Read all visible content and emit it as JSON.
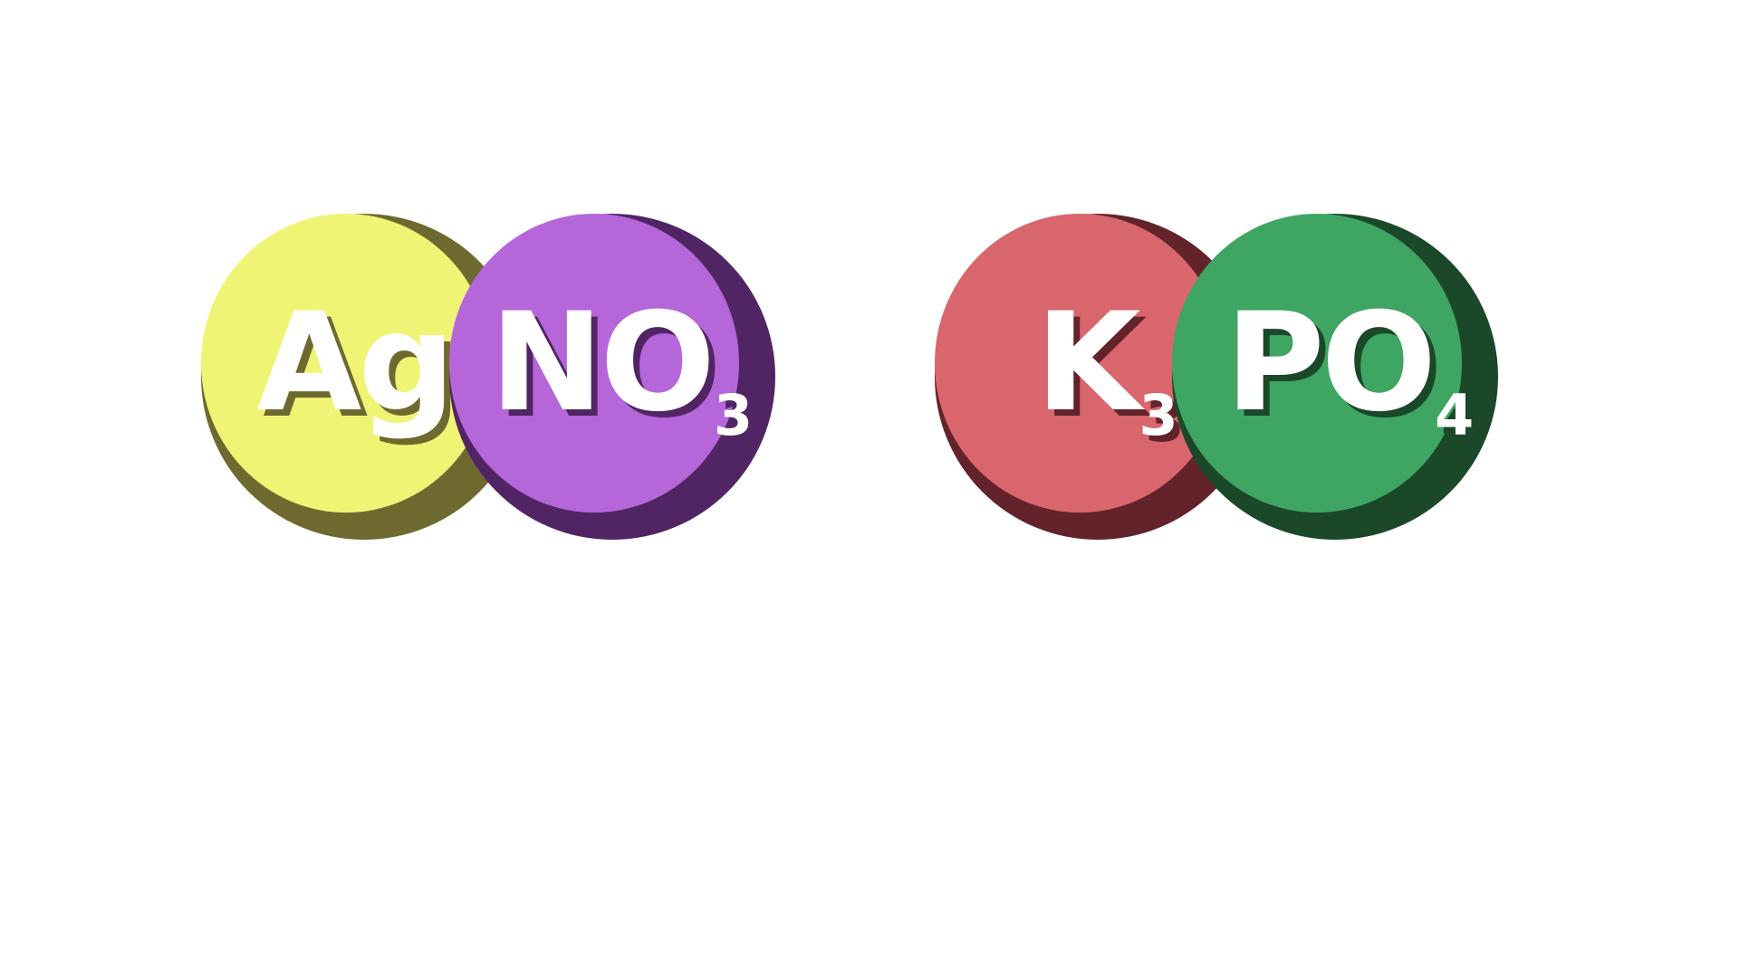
{
  "compounds": [
    {
      "cation": {
        "symbol": "Ag",
        "subscript": "",
        "color": "#f0f475",
        "shadow": "#6e6a2f"
      },
      "anion": {
        "symbol": "NO",
        "subscript": "3",
        "color": "#b566d9",
        "shadow": "#512563"
      }
    },
    {
      "cation": {
        "symbol": "K",
        "subscript": "3",
        "color": "#d9666c",
        "shadow": "#62232a"
      },
      "anion": {
        "symbol": "PO",
        "subscript": "4",
        "color": "#3fa563",
        "shadow": "#1a4828"
      }
    }
  ],
  "text_color": "#ffffff"
}
